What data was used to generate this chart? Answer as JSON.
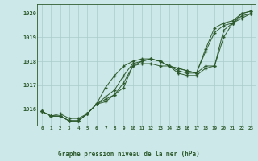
{
  "title": "Graphe pression niveau de la mer (hPa)",
  "bg_color": "#cce8e8",
  "grid_color": "#aacccc",
  "line_color": "#2d5a2d",
  "marker_color": "#2d5a2d",
  "xlim": [
    -0.5,
    23.5
  ],
  "ylim": [
    1015.3,
    1020.4
  ],
  "yticks": [
    1016,
    1017,
    1018,
    1019,
    1020
  ],
  "xticks": [
    0,
    1,
    2,
    3,
    4,
    5,
    6,
    7,
    8,
    9,
    10,
    11,
    12,
    13,
    14,
    15,
    16,
    17,
    18,
    19,
    20,
    21,
    22,
    23
  ],
  "series": [
    [
      1015.9,
      1015.7,
      1015.8,
      1015.6,
      1015.6,
      1015.8,
      1016.2,
      1016.3,
      1016.6,
      1016.9,
      1017.8,
      1017.9,
      1017.9,
      1017.8,
      1017.8,
      1017.7,
      1017.6,
      1017.5,
      1017.8,
      1017.8,
      1019.3,
      1019.6,
      1019.8,
      1020.0
    ],
    [
      1015.9,
      1015.7,
      1015.7,
      1015.5,
      1015.5,
      1015.8,
      1016.2,
      1016.4,
      1016.6,
      1017.1,
      1017.8,
      1018.0,
      1018.1,
      1018.0,
      1017.8,
      1017.5,
      1017.4,
      1017.4,
      1017.7,
      1017.8,
      1019.0,
      1019.6,
      1019.9,
      1020.0
    ],
    [
      1015.9,
      1015.7,
      1015.7,
      1015.5,
      1015.5,
      1015.8,
      1016.2,
      1016.5,
      1016.8,
      1017.4,
      1017.9,
      1018.0,
      1018.1,
      1018.0,
      1017.8,
      1017.6,
      1017.5,
      1017.5,
      1018.4,
      1019.2,
      1019.5,
      1019.6,
      1020.0,
      1020.1
    ],
    [
      1015.9,
      1015.7,
      1015.7,
      1015.5,
      1015.5,
      1015.8,
      1016.2,
      1016.9,
      1017.4,
      1017.8,
      1018.0,
      1018.1,
      1018.1,
      1018.0,
      1017.8,
      1017.7,
      1017.6,
      1017.5,
      1018.5,
      1019.4,
      1019.6,
      1019.7,
      1020.0,
      1020.1
    ]
  ]
}
